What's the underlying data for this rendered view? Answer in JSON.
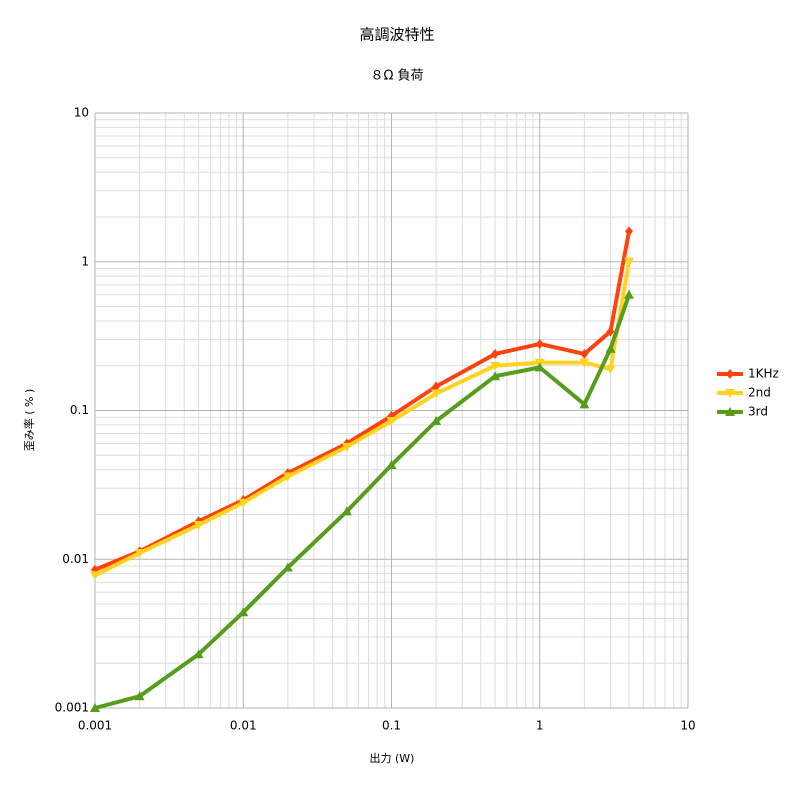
{
  "chart_data": {
    "type": "line",
    "title": "高調波特性",
    "subtitle": "８Ω 負荷",
    "x_label": "出力 (W)",
    "y_label": "歪み率 ( % )",
    "x": [
      0.001,
      0.002,
      0.005,
      0.01,
      0.02,
      0.05,
      0.1,
      0.2,
      0.5,
      1,
      2,
      3,
      4
    ],
    "series": [
      {
        "name": "1KHz",
        "color": "#ff420e",
        "marker": "diamond",
        "values": [
          0.0085,
          0.0113,
          0.018,
          0.025,
          0.038,
          0.06,
          0.092,
          0.145,
          0.24,
          0.28,
          0.24,
          0.34,
          1.6
        ]
      },
      {
        "name": "2nd",
        "color": "#ffd320",
        "marker": "triangle-down",
        "values": [
          0.0078,
          0.011,
          0.017,
          0.024,
          0.036,
          0.057,
          0.085,
          0.13,
          0.2,
          0.21,
          0.21,
          0.19,
          1.0
        ]
      },
      {
        "name": "3rd",
        "color": "#579d1c",
        "marker": "triangle-up",
        "values": [
          0.001,
          0.0012,
          0.0023,
          0.0044,
          0.0088,
          0.021,
          0.043,
          0.085,
          0.17,
          0.195,
          0.11,
          0.26,
          0.6
        ]
      }
    ],
    "xlim": [
      0.001,
      10
    ],
    "ylim": [
      0.001,
      10
    ],
    "xticks": [
      0.001,
      0.01,
      0.1,
      1,
      10
    ],
    "yticks": [
      0.001,
      0.01,
      0.1,
      1,
      10
    ],
    "x_log": true,
    "y_log": true,
    "grid": true,
    "minor_grid": true,
    "legend": "right"
  }
}
